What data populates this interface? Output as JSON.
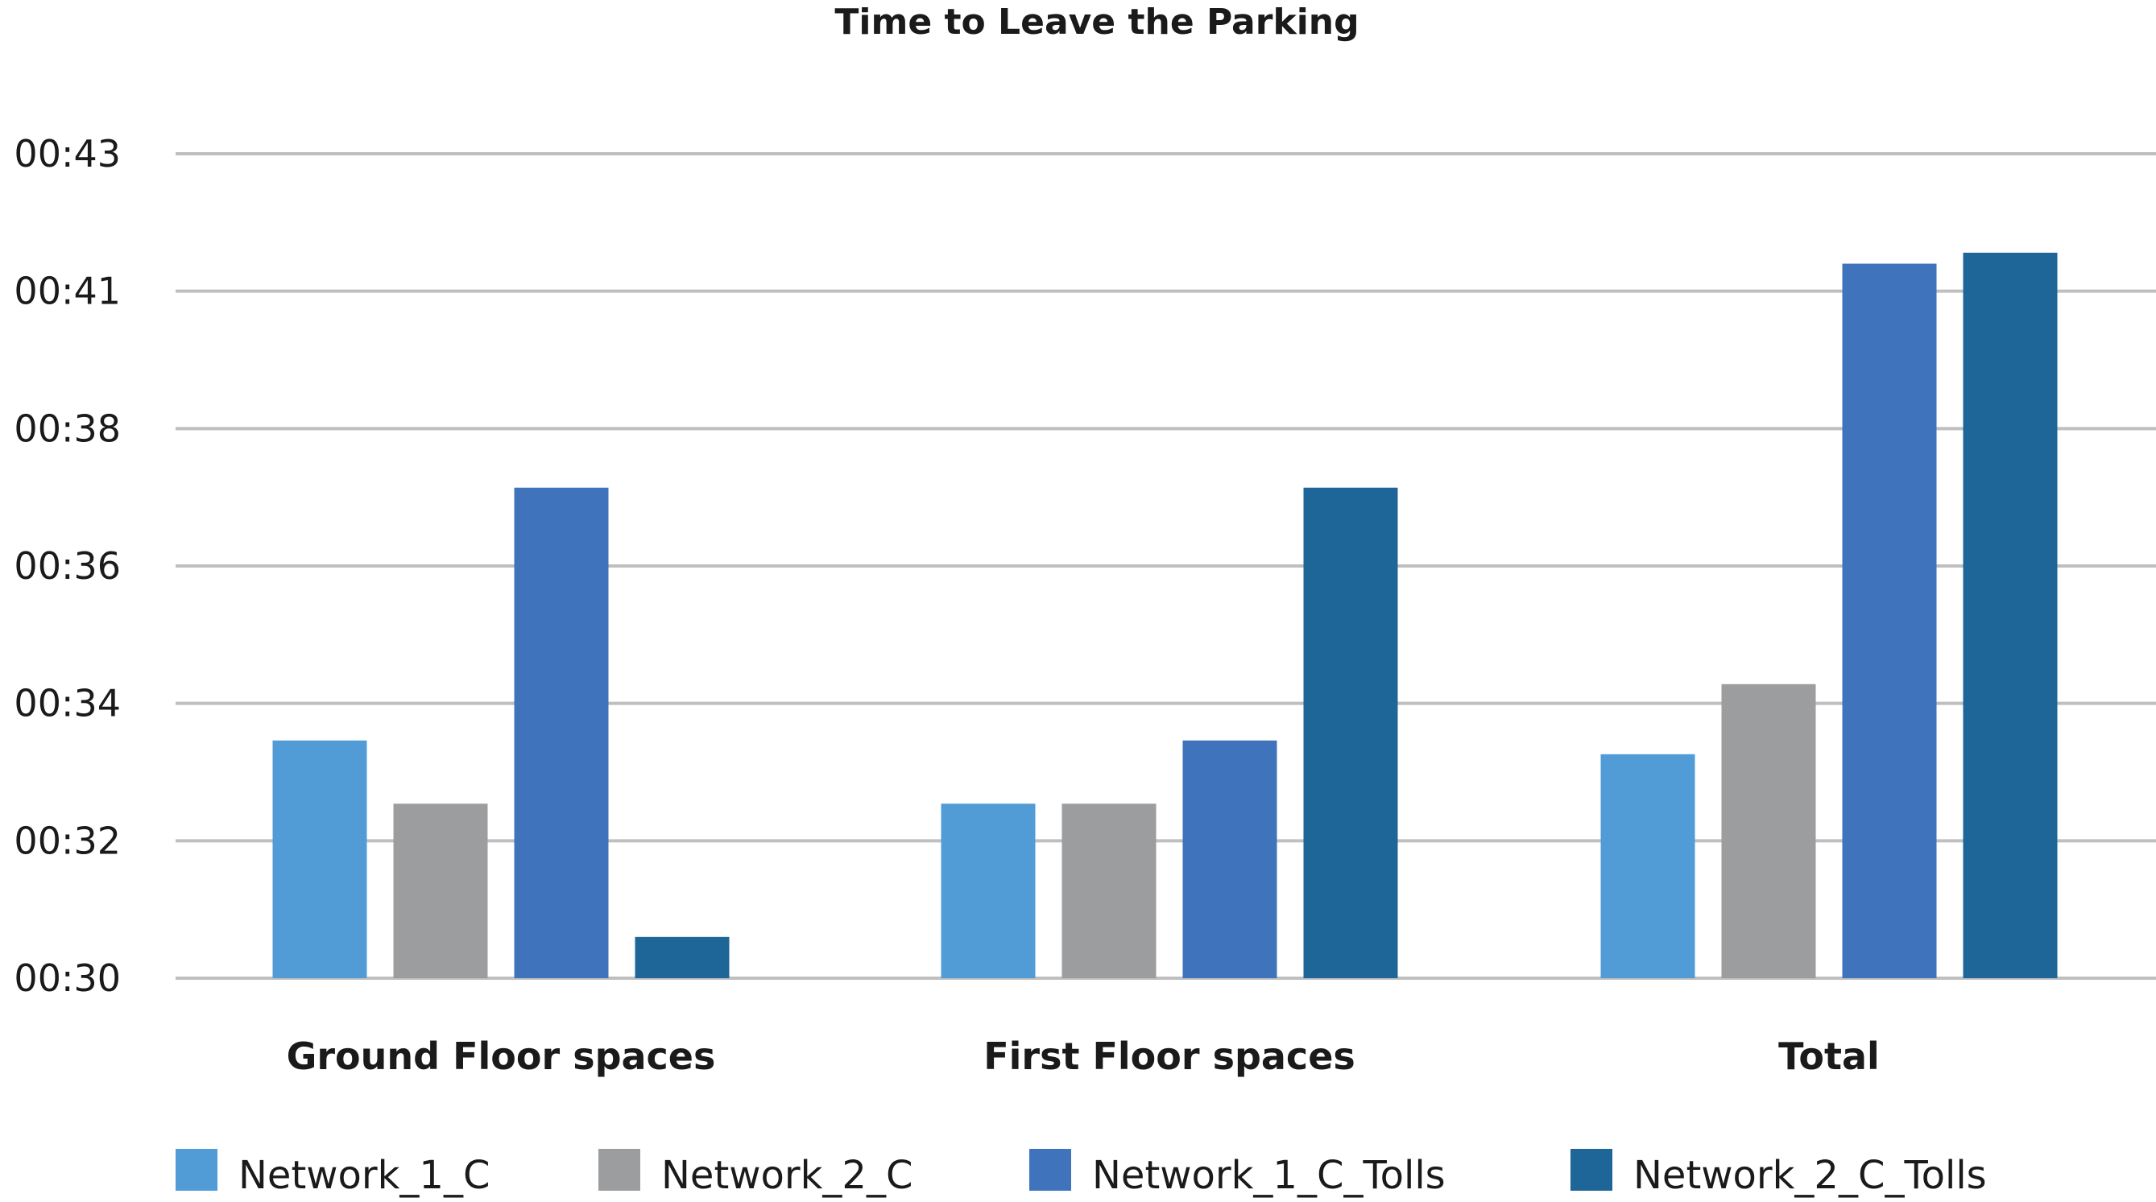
{
  "chart_data": {
    "type": "bar",
    "title": "Time to Leave the Parking",
    "xlabel": "",
    "ylabel": "",
    "categories": [
      "Ground Floor spaces",
      "First Floor spaces",
      "Total"
    ],
    "y_ticks": [
      "00:30",
      "00:32",
      "00:34",
      "00:36",
      "00:38",
      "00:41",
      "00:43"
    ],
    "ylim": [
      0,
      6
    ],
    "grid": true,
    "legend_position": "bottom",
    "series": [
      {
        "name": "Network_1_C",
        "color": "#519CD6",
        "values": [
          1.73,
          1.27,
          1.63
        ]
      },
      {
        "name": "Network_2_C",
        "color": "#9C9D9F",
        "values": [
          1.27,
          1.27,
          2.14
        ]
      },
      {
        "name": "Network_1_C_Tolls",
        "color": "#3F74BC",
        "values": [
          3.57,
          1.73,
          5.2
        ]
      },
      {
        "name": "Network_2_C_Tolls",
        "color": "#1F6698",
        "values": [
          0.3,
          3.57,
          5.28
        ]
      }
    ]
  }
}
